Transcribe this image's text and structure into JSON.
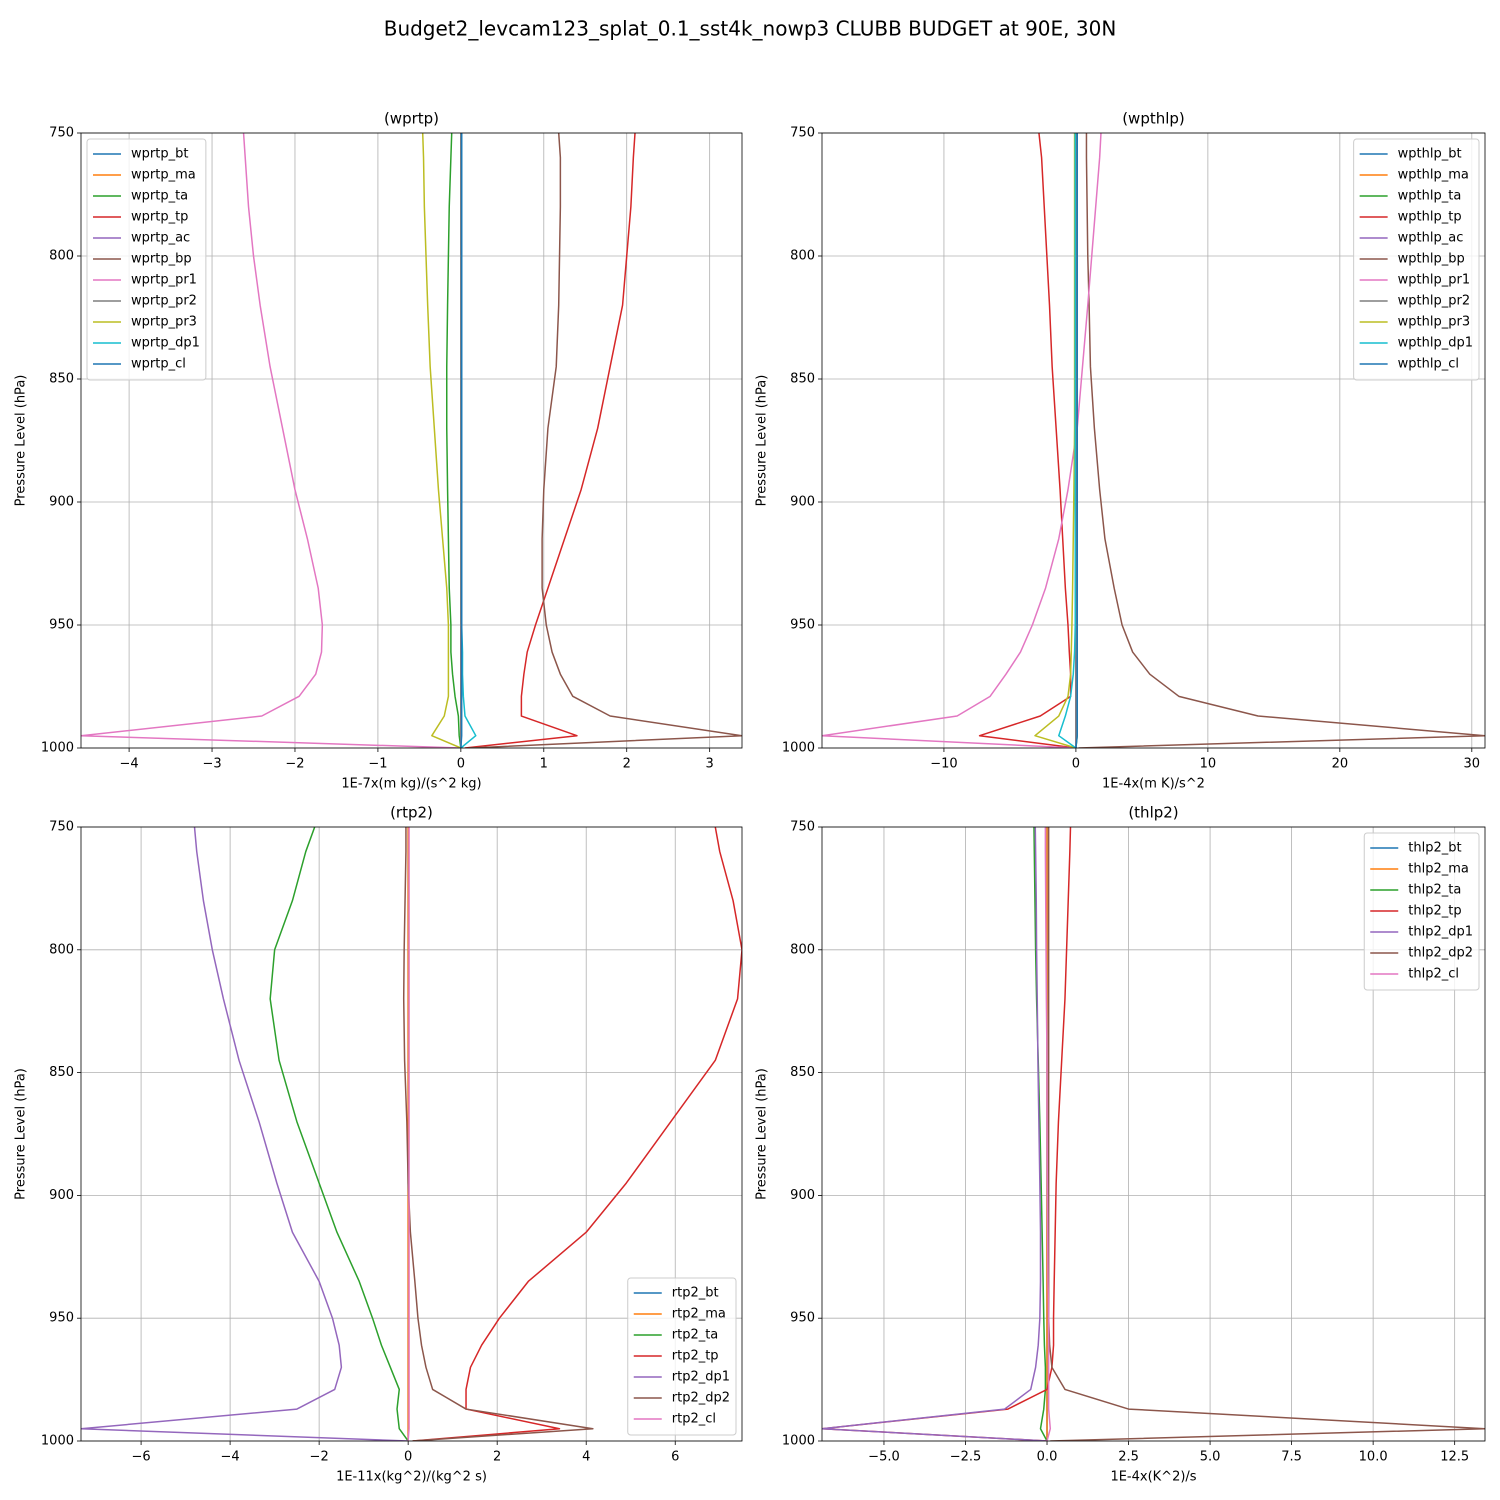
{
  "title": "Budget2_levcam123_splat_0.1_sst4k_nowp3 CLUBB BUDGET at 90E, 30N",
  "chart_data": [
    {
      "type": "line",
      "title": "(wprtp)",
      "xlabel": "1E-7x(m kg)/(s^2 kg)",
      "ylabel": "Pressure Level (hPa)",
      "y": [
        1000,
        995,
        987,
        979,
        970,
        961,
        950,
        935,
        915,
        895,
        870,
        845,
        820,
        800,
        780,
        760,
        750
      ],
      "xlim": [
        -4.58,
        3.39
      ],
      "ylim": [
        1000,
        750
      ],
      "xticks": [
        {
          "value": -4,
          "label": "−4"
        },
        {
          "value": -3,
          "label": "−3"
        },
        {
          "value": -2,
          "label": "−2"
        },
        {
          "value": -1,
          "label": "−1"
        },
        0,
        1,
        2,
        3
      ],
      "yticks": [
        750,
        800,
        850,
        900,
        950,
        1000
      ],
      "grid": true,
      "legend": "upper left",
      "series": [
        {
          "name": "wprtp_bt",
          "color": "#1f77b4",
          "values": [
            0,
            0,
            0,
            0,
            0,
            0,
            0,
            0,
            0,
            0,
            0,
            0,
            0,
            0,
            0,
            0,
            0
          ]
        },
        {
          "name": "wprtp_ma",
          "color": "#ff7f0e",
          "values": [
            0,
            0,
            0,
            0,
            0,
            0,
            0,
            0,
            0,
            0,
            0,
            0,
            0,
            0,
            0,
            0,
            0
          ]
        },
        {
          "name": "wprtp_ta",
          "color": "#2ca02c",
          "values": [
            0,
            -0.02,
            -0.03,
            -0.07,
            -0.1,
            -0.12,
            -0.12,
            -0.14,
            -0.15,
            -0.16,
            -0.17,
            -0.17,
            -0.16,
            -0.15,
            -0.14,
            -0.12,
            -0.11
          ]
        },
        {
          "name": "wprtp_tp",
          "color": "#d62728",
          "values": [
            0.05,
            1.4,
            0.73,
            0.73,
            0.76,
            0.8,
            0.9,
            1.05,
            1.25,
            1.45,
            1.65,
            1.8,
            1.95,
            2.0,
            2.05,
            2.08,
            2.1
          ]
        },
        {
          "name": "wprtp_ac",
          "color": "#9467bd",
          "values": [
            0,
            0,
            0,
            0,
            0,
            0,
            0,
            0,
            0,
            0,
            0,
            0,
            0,
            0,
            0,
            0,
            0
          ]
        },
        {
          "name": "wprtp_bp",
          "color": "#8c564b",
          "values": [
            0.1,
            3.39,
            1.8,
            1.35,
            1.2,
            1.1,
            1.03,
            0.98,
            0.98,
            1.0,
            1.05,
            1.15,
            1.18,
            1.19,
            1.2,
            1.2,
            1.18
          ]
        },
        {
          "name": "wprtp_pr1",
          "color": "#e377c2",
          "values": [
            0,
            -4.58,
            -2.4,
            -1.95,
            -1.75,
            -1.68,
            -1.67,
            -1.72,
            -1.85,
            -2.0,
            -2.15,
            -2.3,
            -2.42,
            -2.5,
            -2.56,
            -2.6,
            -2.62
          ]
        },
        {
          "name": "wprtp_pr2",
          "color": "#7f7f7f",
          "values": [
            0,
            0,
            0,
            0,
            0,
            0,
            0,
            0,
            0,
            0,
            0,
            0,
            0,
            0,
            0,
            0,
            0
          ]
        },
        {
          "name": "wprtp_pr3",
          "color": "#bcbd22",
          "values": [
            0,
            -0.35,
            -0.2,
            -0.15,
            -0.15,
            -0.15,
            -0.15,
            -0.17,
            -0.22,
            -0.27,
            -0.32,
            -0.37,
            -0.4,
            -0.42,
            -0.44,
            -0.45,
            -0.46
          ]
        },
        {
          "name": "wprtp_dp1",
          "color": "#17becf",
          "values": [
            0,
            0.18,
            0.05,
            0.03,
            0.02,
            0.02,
            0.01,
            0.01,
            0.01,
            0.01,
            0.01,
            0.01,
            0.01,
            0.01,
            0.01,
            0.01,
            0.01
          ]
        },
        {
          "name": "wprtp_cl",
          "color": "#1f77b4",
          "values": [
            0,
            0.01,
            0.01,
            0.01,
            0.01,
            0.01,
            0.01,
            0.01,
            0.01,
            0.01,
            0.01,
            0.01,
            0.01,
            0.01,
            0.01,
            0.01,
            0.01
          ]
        }
      ]
    },
    {
      "type": "line",
      "title": "(wpthlp)",
      "xlabel": "1E-4x(m K)/s^2",
      "ylabel": "Pressure Level (hPa)",
      "y": [
        1000,
        995,
        987,
        979,
        970,
        961,
        950,
        935,
        915,
        895,
        870,
        845,
        820,
        800,
        780,
        760,
        750
      ],
      "xlim": [
        -19.24,
        31.0
      ],
      "ylim": [
        1000,
        750
      ],
      "xticks": [
        {
          "value": -10,
          "label": "−10"
        },
        0,
        10,
        20,
        30
      ],
      "yticks": [
        750,
        800,
        850,
        900,
        950,
        1000
      ],
      "grid": true,
      "legend": "upper right",
      "series": [
        {
          "name": "wpthlp_bt",
          "color": "#1f77b4",
          "values": [
            0,
            0,
            0,
            0,
            0,
            0,
            0,
            0,
            0,
            0,
            0,
            0,
            0,
            0,
            0,
            0,
            0
          ]
        },
        {
          "name": "wpthlp_ma",
          "color": "#ff7f0e",
          "values": [
            0,
            0,
            0,
            0,
            0,
            0,
            0,
            0,
            0,
            0,
            0,
            0,
            0,
            0,
            0,
            0,
            0
          ]
        },
        {
          "name": "wpthlp_ta",
          "color": "#2ca02c",
          "values": [
            0,
            0.1,
            0.1,
            0.1,
            0.1,
            0.1,
            0.1,
            0.1,
            0.1,
            0.1,
            0.1,
            0.1,
            0.1,
            0.1,
            0.1,
            0.1,
            0.1
          ]
        },
        {
          "name": "wpthlp_tp",
          "color": "#d62728",
          "values": [
            0,
            -7.3,
            -2.7,
            -0.4,
            -0.4,
            -0.5,
            -0.6,
            -0.8,
            -1.0,
            -1.2,
            -1.5,
            -1.8,
            -2.0,
            -2.2,
            -2.4,
            -2.6,
            -2.8
          ]
        },
        {
          "name": "wpthlp_ac",
          "color": "#9467bd",
          "values": [
            0,
            0,
            0,
            0,
            0,
            0,
            0,
            0,
            0,
            0,
            0,
            0,
            0,
            0,
            0,
            0,
            0
          ]
        },
        {
          "name": "wpthlp_bp",
          "color": "#8c564b",
          "values": [
            0.2,
            31.0,
            13.8,
            7.8,
            5.6,
            4.3,
            3.5,
            2.9,
            2.2,
            1.8,
            1.4,
            1.1,
            1.0,
            0.9,
            0.85,
            0.8,
            0.8
          ]
        },
        {
          "name": "wpthlp_pr1",
          "color": "#e377c2",
          "values": [
            0,
            -19.24,
            -9,
            -6.5,
            -5.3,
            -4.2,
            -3.3,
            -2.3,
            -1.3,
            -0.6,
            0.1,
            0.5,
            0.9,
            1.2,
            1.5,
            1.8,
            1.9
          ]
        },
        {
          "name": "wpthlp_pr2",
          "color": "#7f7f7f",
          "values": [
            0,
            0,
            0,
            0,
            0,
            0,
            0,
            0,
            0,
            0,
            0,
            0,
            0,
            0,
            0,
            0,
            0
          ]
        },
        {
          "name": "wpthlp_pr3",
          "color": "#bcbd22",
          "values": [
            0,
            -3.1,
            -1.3,
            -0.6,
            -0.4,
            -0.35,
            -0.3,
            -0.25,
            -0.2,
            -0.15,
            -0.1,
            -0.1,
            -0.1,
            -0.1,
            -0.1,
            -0.1,
            -0.1
          ]
        },
        {
          "name": "wpthlp_dp1",
          "color": "#17becf",
          "values": [
            0,
            -1.3,
            -0.8,
            -0.4,
            -0.2,
            -0.1,
            -0.05,
            -0.05,
            -0.05,
            -0.05,
            -0.05,
            -0.05,
            -0.05,
            -0.05,
            -0.05,
            -0.05,
            -0.05
          ]
        },
        {
          "name": "wpthlp_cl",
          "color": "#1f77b4",
          "values": [
            0,
            0.1,
            0.1,
            0.1,
            0.1,
            0.1,
            0.1,
            0.1,
            0.1,
            0.1,
            0.1,
            0.1,
            0.1,
            0.1,
            0.1,
            0.1,
            0.1
          ]
        }
      ]
    },
    {
      "type": "line",
      "title": "(rtp2)",
      "xlabel": "1E-11x(kg^2)/(kg^2 s)",
      "ylabel": "Pressure Level (hPa)",
      "y": [
        1000,
        995,
        987,
        979,
        970,
        961,
        950,
        935,
        915,
        895,
        870,
        845,
        820,
        800,
        780,
        760,
        750
      ],
      "xlim": [
        -7.35,
        7.5
      ],
      "ylim": [
        1000,
        750
      ],
      "xticks": [
        {
          "value": -6,
          "label": "−6"
        },
        {
          "value": -4,
          "label": "−4"
        },
        {
          "value": -2,
          "label": "−2"
        },
        0,
        2,
        4,
        6
      ],
      "yticks": [
        750,
        800,
        850,
        900,
        950,
        1000
      ],
      "grid": true,
      "legend": "lower right",
      "series": [
        {
          "name": "rtp2_bt",
          "color": "#1f77b4",
          "values": [
            0,
            0,
            0,
            0,
            0,
            0,
            0,
            0,
            0,
            0,
            0,
            0,
            0,
            0,
            0,
            0,
            0
          ]
        },
        {
          "name": "rtp2_ma",
          "color": "#ff7f0e",
          "values": [
            0,
            0,
            0,
            0,
            0,
            0,
            0,
            0,
            0,
            0,
            0,
            0,
            0,
            0,
            0,
            0,
            0
          ]
        },
        {
          "name": "rtp2_ta",
          "color": "#2ca02c",
          "values": [
            0,
            -0.2,
            -0.25,
            -0.2,
            -0.4,
            -0.6,
            -0.8,
            -1.1,
            -1.6,
            -2.0,
            -2.5,
            -2.9,
            -3.1,
            -3.0,
            -2.6,
            -2.3,
            -2.1
          ]
        },
        {
          "name": "rtp2_tp",
          "color": "#d62728",
          "values": [
            0.1,
            3.4,
            1.3,
            1.3,
            1.4,
            1.65,
            2.05,
            2.7,
            4.0,
            4.9,
            5.9,
            6.9,
            7.4,
            7.5,
            7.3,
            7.0,
            6.9
          ]
        },
        {
          "name": "rtp2_dp1",
          "color": "#9467bd",
          "values": [
            0,
            -7.35,
            -2.5,
            -1.65,
            -1.5,
            -1.55,
            -1.7,
            -2.0,
            -2.6,
            -2.95,
            -3.35,
            -3.8,
            -4.15,
            -4.4,
            -4.6,
            -4.75,
            -4.8
          ]
        },
        {
          "name": "rtp2_dp2",
          "color": "#8c564b",
          "values": [
            0.1,
            4.15,
            1.3,
            0.55,
            0.4,
            0.3,
            0.22,
            0.15,
            0.05,
            0.0,
            -0.03,
            -0.08,
            -0.1,
            -0.09,
            -0.07,
            -0.05,
            -0.05
          ]
        },
        {
          "name": "rtp2_cl",
          "color": "#e377c2",
          "values": [
            0,
            0.02,
            0.02,
            0.02,
            0.02,
            0.02,
            0.02,
            0.02,
            0.02,
            0.02,
            0.02,
            0.02,
            0.02,
            0.02,
            0.02,
            0.02,
            0.02
          ]
        }
      ]
    },
    {
      "type": "line",
      "title": "(thlp2)",
      "xlabel": "1E-4x(K^2)/s",
      "ylabel": "Pressure Level (hPa)",
      "y": [
        1000,
        995,
        987,
        979,
        970,
        961,
        950,
        935,
        915,
        895,
        870,
        845,
        820,
        800,
        780,
        760,
        750
      ],
      "xlim": [
        -6.9,
        13.43
      ],
      "ylim": [
        1000,
        750
      ],
      "xticks": [
        {
          "value": -5,
          "label": "−5.0"
        },
        {
          "value": -2.5,
          "label": "−2.5"
        },
        {
          "value": 0,
          "label": "0.0"
        },
        2.5,
        {
          "value": 5,
          "label": "5.0"
        },
        7.5,
        {
          "value": 10,
          "label": "10.0"
        },
        12.5
      ],
      "yticks": [
        750,
        800,
        850,
        900,
        950,
        1000
      ],
      "grid": true,
      "legend": "upper right",
      "series": [
        {
          "name": "thlp2_bt",
          "color": "#1f77b4",
          "values": [
            0,
            0,
            0,
            0,
            0,
            0,
            0,
            0,
            0,
            0,
            0,
            0,
            0,
            0,
            0,
            0,
            0
          ]
        },
        {
          "name": "thlp2_ma",
          "color": "#ff7f0e",
          "values": [
            0,
            0,
            0,
            0,
            0,
            0,
            0,
            0,
            0,
            0,
            0,
            0,
            0,
            0,
            0,
            0,
            0
          ]
        },
        {
          "name": "thlp2_ta",
          "color": "#2ca02c",
          "values": [
            0,
            -0.2,
            -0.1,
            -0.05,
            -0.05,
            -0.08,
            -0.1,
            -0.12,
            -0.15,
            -0.18,
            -0.22,
            -0.27,
            -0.32,
            -0.35,
            -0.37,
            -0.39,
            -0.4
          ]
        },
        {
          "name": "thlp2_tp",
          "color": "#d62728",
          "values": [
            0,
            -6.9,
            -1.2,
            0.0,
            0.15,
            0.2,
            0.2,
            0.22,
            0.25,
            0.28,
            0.35,
            0.45,
            0.55,
            0.6,
            0.65,
            0.7,
            0.72
          ]
        },
        {
          "name": "thlp2_dp1",
          "color": "#9467bd",
          "values": [
            0,
            -6.9,
            -1.3,
            -0.5,
            -0.35,
            -0.27,
            -0.22,
            -0.2,
            -0.2,
            -0.22,
            -0.25,
            -0.28,
            -0.3,
            -0.32,
            -0.33,
            -0.35,
            -0.36
          ]
        },
        {
          "name": "thlp2_dp2",
          "color": "#8c564b",
          "values": [
            0.1,
            13.43,
            2.5,
            0.55,
            0.15,
            0.08,
            0.05,
            0.05,
            0.05,
            0.05,
            0.05,
            0.05,
            0.05,
            0.05,
            0.05,
            0.05,
            0.05
          ]
        },
        {
          "name": "thlp2_cl",
          "color": "#e377c2",
          "values": [
            0,
            0.1,
            0.05,
            0.05,
            0.05,
            0.05,
            0.05,
            0.03,
            0.02,
            0.01,
            0,
            0,
            -0.02,
            -0.03,
            -0.04,
            -0.05,
            -0.05
          ]
        }
      ]
    }
  ]
}
